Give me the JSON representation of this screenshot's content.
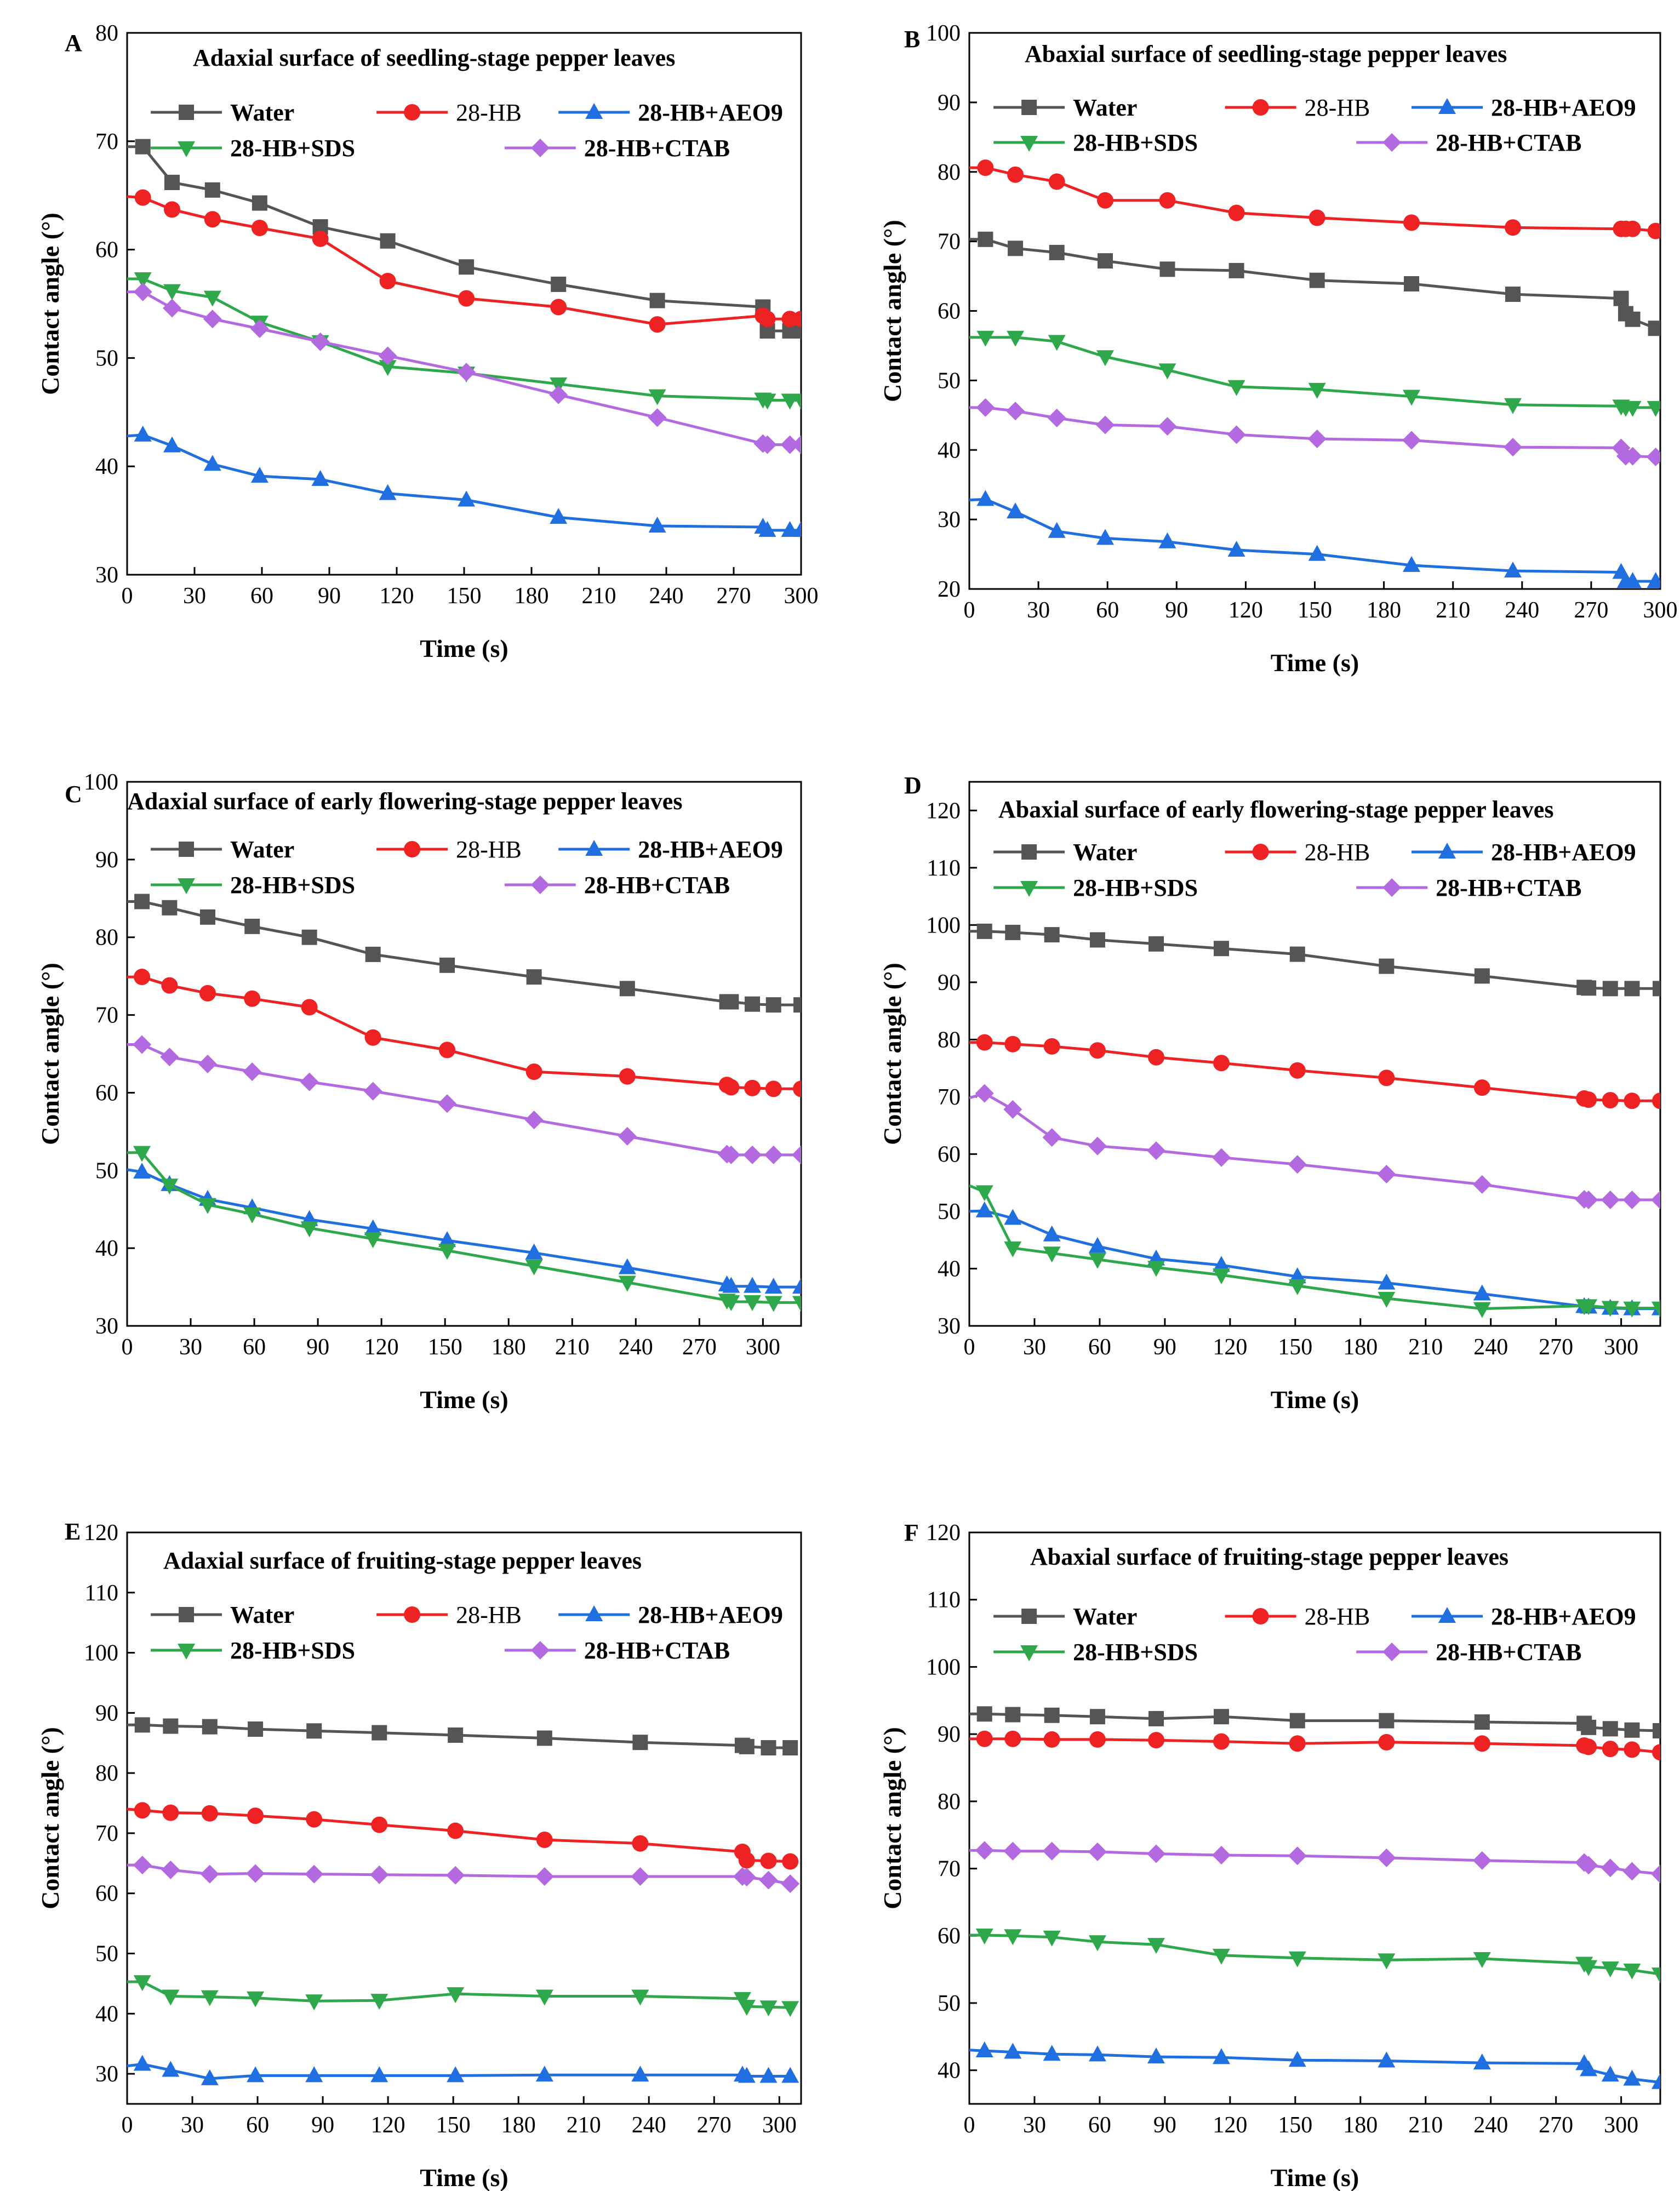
{
  "figure": {
    "xlabel": "Time (s)",
    "ylabel": "Contact angle (°)"
  },
  "chart_data": [
    {
      "type": "line",
      "panel": "A",
      "title": "Adaxial surface of seedling-stage pepper leaves",
      "xlabel": "Time (s)",
      "ylabel": "Contact angle (°)",
      "xlim": [
        0,
        300
      ],
      "ylim": [
        30,
        80
      ],
      "xticks": [
        0,
        30,
        60,
        90,
        120,
        150,
        180,
        210,
        240,
        270,
        300
      ],
      "yticks": [
        30,
        40,
        50,
        60,
        70,
        80
      ],
      "x": [
        0,
        7,
        20,
        38,
        59,
        86,
        116,
        151,
        192,
        236,
        283,
        285,
        295,
        300
      ],
      "series": [
        {
          "name": "Water",
          "color": "#555555",
          "marker": "square",
          "bold": true,
          "values": [
            69.5,
            69.5,
            66.2,
            65.5,
            64.3,
            62.1,
            60.8,
            58.4,
            56.8,
            55.3,
            54.7,
            52.5,
            52.5,
            52.5
          ]
        },
        {
          "name": "28-HB",
          "color": "#ee2222",
          "marker": "circle",
          "bold": false,
          "values": [
            64.9,
            64.8,
            63.7,
            62.8,
            62.0,
            61.0,
            57.1,
            55.5,
            54.7,
            53.1,
            53.9,
            53.6,
            53.6,
            53.6
          ]
        },
        {
          "name": "28-HB+AEO9",
          "color": "#1f6fe0",
          "marker": "triangle-up",
          "bold": true,
          "values": [
            42.8,
            42.9,
            41.9,
            40.2,
            39.1,
            38.8,
            37.5,
            36.9,
            35.3,
            34.5,
            34.4,
            34.1,
            34.1,
            34.1
          ]
        },
        {
          "name": "28-HB+SDS",
          "color": "#2ea84a",
          "marker": "triangle-down",
          "bold": true,
          "values": [
            57.3,
            57.3,
            56.2,
            55.6,
            53.3,
            51.5,
            49.2,
            48.6,
            47.6,
            46.5,
            46.2,
            46.1,
            46.1,
            46.1
          ]
        },
        {
          "name": "28-HB+CTAB",
          "color": "#b36ae0",
          "marker": "diamond",
          "bold": true,
          "values": [
            56.1,
            56.1,
            54.6,
            53.6,
            52.7,
            51.5,
            50.2,
            48.7,
            46.6,
            44.5,
            42.1,
            42.0,
            42.0,
            42.0
          ]
        }
      ]
    },
    {
      "type": "line",
      "panel": "B",
      "title": "Abaxial surface of seedling-stage pepper leaves",
      "xlabel": "Time (s)",
      "ylabel": "Contact angle (°)",
      "xlim": [
        0,
        300
      ],
      "ylim": [
        20,
        100
      ],
      "xticks": [
        0,
        30,
        60,
        90,
        120,
        150,
        180,
        210,
        240,
        270,
        300
      ],
      "yticks": [
        20,
        30,
        40,
        50,
        60,
        70,
        80,
        90,
        100
      ],
      "x": [
        0,
        7,
        20,
        38,
        59,
        86,
        116,
        151,
        192,
        236,
        283,
        285,
        288,
        298
      ],
      "series": [
        {
          "name": "Water",
          "color": "#555555",
          "marker": "square",
          "bold": true,
          "values": [
            70.3,
            70.3,
            69.0,
            68.4,
            67.2,
            66.0,
            65.8,
            64.4,
            63.9,
            62.4,
            61.8,
            59.6,
            58.8,
            57.5
          ]
        },
        {
          "name": "28-HB",
          "color": "#ee2222",
          "marker": "circle",
          "bold": false,
          "values": [
            80.6,
            80.6,
            79.6,
            78.6,
            75.9,
            75.9,
            74.1,
            73.4,
            72.7,
            72.0,
            71.8,
            71.8,
            71.8,
            71.5
          ]
        },
        {
          "name": "28-HB+AEO9",
          "color": "#1f6fe0",
          "marker": "triangle-up",
          "bold": true,
          "values": [
            32.8,
            32.9,
            31.1,
            28.3,
            27.3,
            26.8,
            25.6,
            25.0,
            23.4,
            22.6,
            22.4,
            21.1,
            21.1,
            21.1
          ]
        },
        {
          "name": "28-HB+SDS",
          "color": "#2ea84a",
          "marker": "triangle-down",
          "bold": true,
          "values": [
            56.2,
            56.2,
            56.2,
            55.6,
            53.4,
            51.5,
            49.1,
            48.7,
            47.7,
            46.5,
            46.3,
            46.1,
            46.1,
            46.1
          ]
        },
        {
          "name": "28-HB+CTAB",
          "color": "#b36ae0",
          "marker": "diamond",
          "bold": true,
          "values": [
            46.1,
            46.1,
            45.6,
            44.6,
            43.6,
            43.4,
            42.2,
            41.6,
            41.4,
            40.4,
            40.3,
            39.1,
            39.1,
            39.0
          ]
        }
      ]
    },
    {
      "type": "line",
      "panel": "C",
      "title": "Adaxial surface of early flowering-stage pepper leaves",
      "xlabel": "Time (s)",
      "ylabel": "Contact angle (°)",
      "xlim": [
        0,
        318
      ],
      "ylim": [
        30,
        100
      ],
      "xticks": [
        0,
        30,
        60,
        90,
        120,
        150,
        180,
        210,
        240,
        270,
        300
      ],
      "yticks": [
        30,
        40,
        50,
        60,
        70,
        80,
        90,
        100
      ],
      "x": [
        0,
        7,
        20,
        38,
        59,
        86,
        116,
        151,
        192,
        236,
        283,
        285,
        295,
        305,
        318
      ],
      "series": [
        {
          "name": "Water",
          "color": "#555555",
          "marker": "square",
          "bold": true,
          "values": [
            84.6,
            84.6,
            83.8,
            82.6,
            81.4,
            80.0,
            77.8,
            76.4,
            74.9,
            73.4,
            71.7,
            71.7,
            71.4,
            71.3,
            71.3
          ]
        },
        {
          "name": "28-HB",
          "color": "#ee2222",
          "marker": "circle",
          "bold": false,
          "values": [
            74.9,
            74.9,
            73.8,
            72.8,
            72.1,
            71.0,
            67.1,
            65.5,
            62.7,
            62.1,
            61.0,
            60.7,
            60.6,
            60.5,
            60.5
          ]
        },
        {
          "name": "28-HB+AEO9",
          "color": "#1f6fe0",
          "marker": "triangle-up",
          "bold": true,
          "values": [
            50.1,
            49.8,
            48.2,
            46.3,
            45.2,
            43.7,
            42.5,
            41.0,
            39.4,
            37.5,
            35.3,
            35.1,
            35.1,
            35.0,
            35.0
          ]
        },
        {
          "name": "28-HB+SDS",
          "color": "#2ea84a",
          "marker": "triangle-down",
          "bold": true,
          "values": [
            52.3,
            52.3,
            48.1,
            45.6,
            44.4,
            42.6,
            41.2,
            39.7,
            37.7,
            35.6,
            33.3,
            33.1,
            33.1,
            33.0,
            33.0
          ]
        },
        {
          "name": "28-HB+CTAB",
          "color": "#b36ae0",
          "marker": "diamond",
          "bold": true,
          "values": [
            66.2,
            66.2,
            64.6,
            63.7,
            62.7,
            61.4,
            60.2,
            58.6,
            56.5,
            54.4,
            52.1,
            52.0,
            52.0,
            52.0,
            52.0
          ]
        }
      ]
    },
    {
      "type": "line",
      "panel": "D",
      "title": "Abaxial surface of early flowering-stage pepper leaves",
      "xlabel": "Time (s)",
      "ylabel": "Contact angle (°)",
      "xlim": [
        0,
        318
      ],
      "ylim": [
        30,
        125
      ],
      "xticks": [
        0,
        30,
        60,
        90,
        120,
        150,
        180,
        210,
        240,
        270,
        300
      ],
      "yticks": [
        30,
        40,
        50,
        60,
        70,
        80,
        90,
        100,
        110,
        120
      ],
      "x": [
        0,
        7,
        20,
        38,
        59,
        86,
        116,
        151,
        192,
        236,
        283,
        285,
        295,
        305,
        318
      ],
      "series": [
        {
          "name": "Water",
          "color": "#555555",
          "marker": "square",
          "bold": true,
          "values": [
            98.9,
            98.9,
            98.7,
            98.3,
            97.4,
            96.7,
            95.9,
            94.9,
            92.8,
            91.1,
            89.1,
            89.0,
            88.9,
            88.9,
            88.9
          ]
        },
        {
          "name": "28-HB",
          "color": "#ee2222",
          "marker": "circle",
          "bold": false,
          "values": [
            79.5,
            79.5,
            79.2,
            78.8,
            78.1,
            76.9,
            75.9,
            74.6,
            73.3,
            71.6,
            69.7,
            69.5,
            69.4,
            69.3,
            69.3
          ]
        },
        {
          "name": "28-HB+AEO9",
          "color": "#1f6fe0",
          "marker": "triangle-up",
          "bold": true,
          "values": [
            50.0,
            50.1,
            48.8,
            45.9,
            43.9,
            41.7,
            40.6,
            38.6,
            37.5,
            35.6,
            33.4,
            33.3,
            33.1,
            33.0,
            33.0
          ]
        },
        {
          "name": "28-HB+SDS",
          "color": "#2ea84a",
          "marker": "triangle-down",
          "bold": true,
          "values": [
            54.5,
            53.4,
            43.6,
            42.7,
            41.6,
            40.2,
            38.9,
            37.0,
            34.8,
            33.0,
            33.5,
            33.5,
            33.2,
            33.1,
            33.1
          ]
        },
        {
          "name": "28-HB+CTAB",
          "color": "#b36ae0",
          "marker": "diamond",
          "bold": true,
          "values": [
            69.8,
            70.6,
            67.8,
            62.9,
            61.4,
            60.6,
            59.4,
            58.2,
            56.5,
            54.7,
            52.1,
            52.0,
            52.0,
            52.0,
            52.0
          ]
        }
      ]
    },
    {
      "type": "line",
      "panel": "E",
      "title": "Adaxial surface of fruiting-stage pepper leaves",
      "xlabel": "Time (s)",
      "ylabel": "Contact angle (°)",
      "xlim": [
        0,
        310
      ],
      "ylim": [
        25,
        120
      ],
      "xticks": [
        0,
        30,
        60,
        90,
        120,
        150,
        180,
        210,
        240,
        270,
        300
      ],
      "yticks": [
        30,
        40,
        50,
        60,
        70,
        80,
        90,
        100,
        110,
        120
      ],
      "x": [
        0,
        7,
        20,
        38,
        59,
        86,
        116,
        151,
        192,
        236,
        283,
        285,
        295,
        305
      ],
      "series": [
        {
          "name": "Water",
          "color": "#555555",
          "marker": "square",
          "bold": true,
          "values": [
            88.0,
            88.0,
            87.8,
            87.7,
            87.3,
            87.0,
            86.7,
            86.3,
            85.8,
            85.1,
            84.6,
            84.4,
            84.2,
            84.2
          ]
        },
        {
          "name": "28-HB",
          "color": "#ee2222",
          "marker": "circle",
          "bold": false,
          "values": [
            74.0,
            73.8,
            73.4,
            73.3,
            72.9,
            72.3,
            71.4,
            70.4,
            68.9,
            68.3,
            66.9,
            65.5,
            65.4,
            65.3
          ]
        },
        {
          "name": "28-HB+AEO9",
          "color": "#1f6fe0",
          "marker": "triangle-up",
          "bold": true,
          "values": [
            31.3,
            31.6,
            30.6,
            29.2,
            29.7,
            29.7,
            29.7,
            29.7,
            29.8,
            29.8,
            29.8,
            29.6,
            29.6,
            29.6
          ]
        },
        {
          "name": "28-HB+SDS",
          "color": "#2ea84a",
          "marker": "triangle-down",
          "bold": true,
          "values": [
            45.3,
            45.3,
            42.9,
            42.8,
            42.6,
            42.1,
            42.2,
            43.3,
            42.9,
            42.9,
            42.5,
            41.2,
            41.1,
            41.0
          ]
        },
        {
          "name": "28-HB+CTAB",
          "color": "#b36ae0",
          "marker": "diamond",
          "bold": true,
          "values": [
            64.7,
            64.7,
            63.9,
            63.2,
            63.3,
            63.2,
            63.1,
            63.0,
            62.8,
            62.8,
            62.8,
            62.7,
            62.2,
            61.6
          ]
        }
      ]
    },
    {
      "type": "line",
      "panel": "F",
      "title": "Abaxial surface of fruiting-stage pepper leaves",
      "xlabel": "Time (s)",
      "ylabel": "Contact angle (°)",
      "xlim": [
        0,
        318
      ],
      "ylim": [
        35,
        120
      ],
      "xticks": [
        0,
        30,
        60,
        90,
        120,
        150,
        180,
        210,
        240,
        270,
        300
      ],
      "yticks": [
        40,
        50,
        60,
        70,
        80,
        90,
        100,
        110,
        120
      ],
      "x": [
        0,
        7,
        20,
        38,
        59,
        86,
        116,
        151,
        192,
        236,
        283,
        285,
        295,
        305,
        318
      ],
      "series": [
        {
          "name": "Water",
          "color": "#555555",
          "marker": "square",
          "bold": true,
          "values": [
            93.0,
            93.0,
            92.9,
            92.8,
            92.6,
            92.3,
            92.6,
            92.0,
            92.0,
            91.8,
            91.6,
            91.0,
            90.8,
            90.6,
            90.5
          ]
        },
        {
          "name": "28-HB",
          "color": "#ee2222",
          "marker": "circle",
          "bold": false,
          "values": [
            89.3,
            89.3,
            89.3,
            89.2,
            89.2,
            89.1,
            88.9,
            88.6,
            88.8,
            88.6,
            88.3,
            88.1,
            87.8,
            87.7,
            87.3
          ]
        },
        {
          "name": "28-HB+AEO9",
          "color": "#1f6fe0",
          "marker": "triangle-up",
          "bold": true,
          "values": [
            43.0,
            42.9,
            42.7,
            42.4,
            42.3,
            42.0,
            41.9,
            41.5,
            41.4,
            41.1,
            41.0,
            40.1,
            39.3,
            38.7,
            38.2
          ]
        },
        {
          "name": "28-HB+SDS",
          "color": "#2ea84a",
          "marker": "triangle-down",
          "bold": true,
          "values": [
            60.1,
            60.1,
            60.0,
            59.8,
            59.1,
            58.7,
            57.1,
            56.7,
            56.4,
            56.6,
            55.9,
            55.4,
            55.2,
            54.9,
            54.3
          ]
        },
        {
          "name": "28-HB+CTAB",
          "color": "#b36ae0",
          "marker": "diamond",
          "bold": true,
          "values": [
            72.7,
            72.7,
            72.6,
            72.6,
            72.5,
            72.2,
            72.0,
            71.9,
            71.6,
            71.2,
            70.9,
            70.5,
            70.1,
            69.6,
            69.2
          ]
        }
      ]
    }
  ]
}
